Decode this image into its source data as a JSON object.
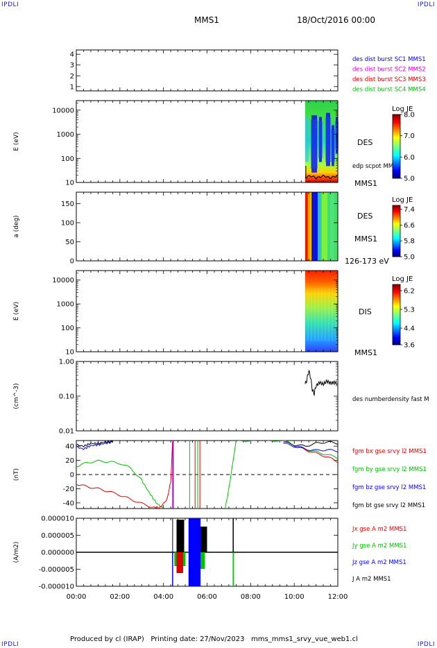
{
  "header": {
    "corner_left": "IPDLI",
    "corner_right": "IPDLI",
    "mission": "MMS1",
    "date": "18/Oct/2016 00:00"
  },
  "footer": {
    "text": "Produced by cl (IRAP)   Printing date: 27/Nov/2023   mms_mms1_srvy_vue_web1.cl"
  },
  "colors": {
    "blue": "#0000ff",
    "magenta": "#e000e0",
    "red": "#e00000",
    "green": "#00c000",
    "black": "#000000"
  },
  "chart_data": [
    {
      "type": "line",
      "panel": "spacecraft-burst-availability",
      "yticks": [
        "1",
        "2",
        "3",
        "4"
      ],
      "ylim": [
        0.6,
        4.4
      ],
      "legend": [
        {
          "name": "des dist burst SC1 MMS1",
          "color": "#0000ff"
        },
        {
          "name": "des dist burst SC2 MMS2",
          "color": "#e000e0"
        },
        {
          "name": "des dist burst SC3 MMS3",
          "color": "#e00000"
        },
        {
          "name": "des dist burst SC4 MMS4",
          "color": "#00c000"
        }
      ]
    },
    {
      "type": "heatmap",
      "panel": "des-energy-spectrogram",
      "ylabel": "E (eV)",
      "yscale": "log",
      "yticks": [
        "10",
        "100",
        "1000",
        "10000"
      ],
      "data_coverage_x": [
        "10:30",
        "12:00"
      ],
      "right_labels": [
        "DES",
        "edp scpot MMS1",
        "MMS1"
      ],
      "colorbar": {
        "title": "Log JE",
        "ticks": [
          "5.0",
          "6.0",
          "7.0",
          "8.0"
        ],
        "range": [
          5.0,
          8.0
        ]
      }
    },
    {
      "type": "heatmap",
      "panel": "des-pitch-angle",
      "ylabel": "a (deg)",
      "yticks": [
        "0",
        "50",
        "100",
        "150"
      ],
      "ylim": [
        0,
        180
      ],
      "data_coverage_x": [
        "10:30",
        "12:00"
      ],
      "right_labels": [
        "DES",
        "MMS1",
        "126-173 eV"
      ],
      "colorbar": {
        "title": "Log JE",
        "ticks": [
          "5.0",
          "5.8",
          "6.6",
          "7.4"
        ],
        "range": [
          5.0,
          7.6
        ]
      }
    },
    {
      "type": "heatmap",
      "panel": "dis-energy-spectrogram",
      "ylabel": "E (eV)",
      "yscale": "log",
      "yticks": [
        "10",
        "100",
        "1000",
        "10000"
      ],
      "data_coverage_x": [
        "10:30",
        "12:00"
      ],
      "right_labels": [
        "DIS",
        "MMS1"
      ],
      "colorbar": {
        "title": "Log JE",
        "ticks": [
          "3.6",
          "4.4",
          "5.3",
          "6.2"
        ],
        "range": [
          3.6,
          6.5
        ]
      }
    },
    {
      "type": "line",
      "panel": "density",
      "ylabel": "(cm^-3)",
      "yscale": "log",
      "yticks": [
        "0.01",
        "0.10",
        "1.00"
      ],
      "ylim": [
        0.01,
        1.0
      ],
      "series": [
        {
          "name": "des numberdensity fast M",
          "color": "#000000",
          "x": [
            "10:30",
            "10:35",
            "10:40",
            "10:45",
            "10:50",
            "10:55",
            "11:00",
            "11:10",
            "11:20",
            "11:30",
            "11:40",
            "11:50",
            "12:00"
          ],
          "values": [
            0.22,
            0.3,
            0.55,
            0.35,
            0.15,
            0.12,
            0.2,
            0.25,
            0.22,
            0.27,
            0.24,
            0.25,
            0.23
          ]
        }
      ]
    },
    {
      "type": "line",
      "panel": "magnetic-field",
      "ylabel": "(nT)",
      "yticks": [
        "-40",
        "-20",
        "0",
        "20",
        "40"
      ],
      "ylim": [
        -48,
        48
      ],
      "reference_line": 0,
      "series": [
        {
          "name": "fgm bx gse srvy l2 MMS1",
          "color": "#e00000",
          "x": [
            "00:00",
            "00:30",
            "01:00",
            "01:30",
            "02:00",
            "02:30",
            "03:00",
            "03:30",
            "03:50",
            "04:10",
            "04:20",
            "04:25",
            "10:00",
            "10:30",
            "11:00",
            "11:30",
            "12:00"
          ],
          "values": [
            -14,
            -17,
            -20,
            -24,
            -29,
            -35,
            -41,
            -46,
            -47,
            -35,
            -10,
            45,
            40,
            35,
            30,
            25,
            18
          ]
        },
        {
          "name": "fgm by gse srvy l2 MMS1",
          "color": "#00c000",
          "x": [
            "00:00",
            "00:30",
            "01:00",
            "01:30",
            "02:00",
            "02:30",
            "03:00",
            "03:20",
            "03:40",
            "04:00",
            "06:50",
            "07:00",
            "07:20",
            "09:30",
            "10:00",
            "10:30",
            "11:00",
            "11:30",
            "12:00"
          ],
          "values": [
            11,
            17,
            19,
            18,
            16,
            9,
            -8,
            -25,
            -40,
            -48,
            -48,
            -20,
            48,
            48,
            42,
            36,
            32,
            28,
            24
          ]
        },
        {
          "name": "fgm bz gse srvy l2 MMS1",
          "color": "#0000ff",
          "x": [
            "00:00",
            "00:20",
            "00:40",
            "01:00",
            "01:20",
            "01:40",
            "09:30",
            "10:00",
            "10:30",
            "11:00",
            "11:30",
            "12:00"
          ],
          "values": [
            39,
            36,
            41,
            42,
            44,
            46,
            44,
            40,
            36,
            34,
            35,
            33
          ]
        },
        {
          "name": "fgm bt gse srvy l2 MMS1",
          "color": "#000000",
          "x": [
            "00:00",
            "00:20",
            "00:40",
            "01:00",
            "01:20",
            "01:40",
            "09:30",
            "10:00",
            "10:30",
            "11:00",
            "11:30",
            "12:00"
          ],
          "values": [
            42,
            40,
            44,
            44,
            46,
            47,
            46,
            42,
            40,
            44,
            46,
            44
          ]
        }
      ]
    },
    {
      "type": "line",
      "panel": "current-density",
      "ylabel": "(A/m2)",
      "yticks": [
        "-0.000010",
        "-0.000005",
        "0.000000",
        "0.000005",
        "0.000010"
      ],
      "ylim": [
        -1e-05,
        1e-05
      ],
      "series": [
        {
          "name": "Jx gse A m2 MMS1",
          "color": "#e00000"
        },
        {
          "name": "Jy gse A m2 MMS1",
          "color": "#00c000"
        },
        {
          "name": "Jz gse A m2 MMS1",
          "color": "#0000ff"
        },
        {
          "name": "J A m2 MMS1",
          "color": "#000000"
        }
      ]
    }
  ],
  "xaxis": {
    "ticks": [
      "00:00",
      "02:00",
      "04:00",
      "06:00",
      "08:00",
      "10:00",
      "12:00"
    ],
    "range_hours": [
      0,
      12
    ]
  }
}
